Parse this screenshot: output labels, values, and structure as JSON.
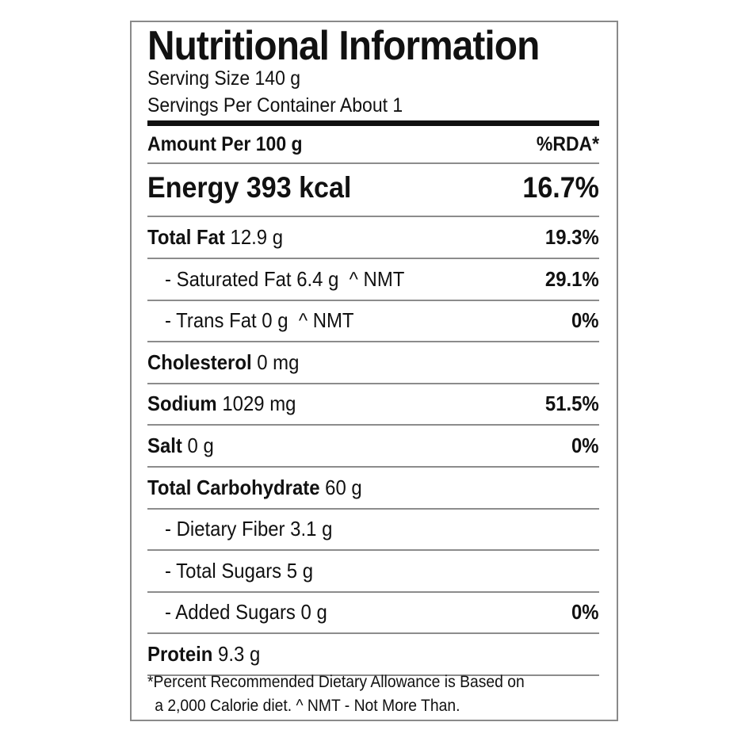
{
  "title": "Nutritional Information",
  "serving_size": "Serving Size 140 g",
  "servings_per_container": "Servings Per Container About 1",
  "header": {
    "amount": "Amount Per 100 g",
    "rda": "%RDA*"
  },
  "energy": {
    "label": "Energy 393 kcal",
    "pct": "16.7%"
  },
  "rows": [
    {
      "name": "Total Fat",
      "amount": " 12.9 g",
      "pct": "19.3%"
    },
    {
      "name": "- Saturated Fat 6.4 g",
      "amount": "  ^ NMT",
      "pct": "29.1%"
    },
    {
      "name": "- Trans Fat 0 g",
      "amount": "  ^ NMT",
      "pct": "0%"
    },
    {
      "name": "Cholesterol",
      "amount": " 0 mg",
      "pct": ""
    },
    {
      "name": "Sodium",
      "amount": " 1029 mg",
      "pct": "51.5%"
    },
    {
      "name": "Salt",
      "amount": " 0 g",
      "pct": "0%"
    },
    {
      "name": "Total Carbohydrate",
      "amount": " 60 g",
      "pct": ""
    },
    {
      "name": "- Dietary Fiber 3.1 g",
      "amount": "",
      "pct": ""
    },
    {
      "name": "- Total Sugars 5 g",
      "amount": "",
      "pct": ""
    },
    {
      "name": "- Added Sugars 0 g",
      "amount": "",
      "pct": "0%"
    },
    {
      "name": "Protein",
      "amount": " 9.3 g",
      "pct": ""
    }
  ],
  "footnote": {
    "line1": "*Percent Recommended Dietary Allowance is Based on",
    "line2": "a 2,000 Calorie diet.  ^ NMT - Not More Than."
  }
}
